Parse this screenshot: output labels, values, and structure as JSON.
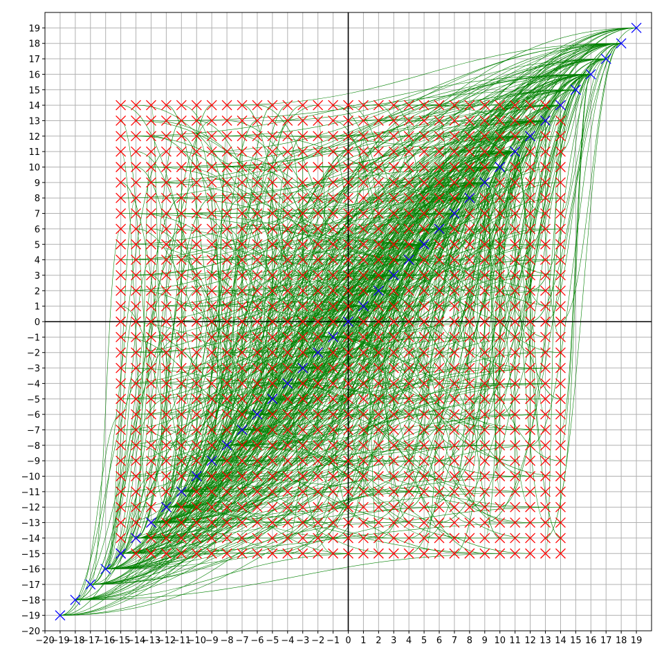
{
  "chart_data": {
    "type": "scatter",
    "title": "",
    "xlabel": "",
    "ylabel": "",
    "xlim": [
      -20,
      20
    ],
    "ylim": [
      -20,
      20
    ],
    "grid": true,
    "legend": "none",
    "x_ticks": [
      -20,
      -19,
      -18,
      -17,
      -16,
      -15,
      -14,
      -13,
      -12,
      -11,
      -10,
      -9,
      -8,
      -7,
      -6,
      -5,
      -4,
      -3,
      -2,
      -1,
      0,
      1,
      2,
      3,
      4,
      5,
      6,
      7,
      8,
      9,
      10,
      11,
      12,
      13,
      14,
      15,
      16,
      17,
      18,
      19
    ],
    "y_ticks": [
      -20,
      -19,
      -18,
      -17,
      -16,
      -15,
      -14,
      -13,
      -12,
      -11,
      -10,
      -9,
      -8,
      -7,
      -6,
      -5,
      -4,
      -3,
      -2,
      -1,
      0,
      1,
      2,
      3,
      4,
      5,
      6,
      7,
      8,
      9,
      10,
      11,
      12,
      13,
      14,
      15,
      16,
      17,
      18,
      19
    ],
    "x_tick_labels": [
      "−20",
      "−19",
      "−18",
      "−17",
      "−16",
      "−15",
      "−14",
      "−13",
      "−12",
      "−11",
      "−10",
      "−9",
      "−8",
      "−7",
      "−6",
      "−5",
      "−4",
      "−3",
      "−2",
      "−1",
      "0",
      "1",
      "2",
      "3",
      "4",
      "5",
      "6",
      "7",
      "8",
      "9",
      "10",
      "11",
      "12",
      "13",
      "14",
      "15",
      "16",
      "17",
      "18",
      "19"
    ],
    "y_tick_labels": [
      "−20",
      "−19",
      "−18",
      "−17",
      "−16",
      "−15",
      "−14",
      "−13",
      "−12",
      "−11",
      "−10",
      "−9",
      "−8",
      "−7",
      "−6",
      "−5",
      "−4",
      "−3",
      "−2",
      "−1",
      "0",
      "1",
      "2",
      "3",
      "4",
      "5",
      "6",
      "7",
      "8",
      "9",
      "10",
      "11",
      "12",
      "13",
      "14",
      "15",
      "16",
      "17",
      "18",
      "19"
    ],
    "series": [
      {
        "marker": "x",
        "color": "#ff0000",
        "grid_points": {
          "x_range": [
            -15,
            14
          ],
          "y_range": [
            -15,
            14
          ],
          "step": 1
        }
      },
      {
        "marker": "x",
        "color": "#0000ff",
        "x": [
          -19,
          -18,
          -17,
          -16,
          -15,
          -14,
          -13,
          -12,
          -11,
          -10,
          -9,
          -8,
          -7,
          -6,
          -5,
          -4,
          -3,
          -2,
          -1,
          0,
          1,
          2,
          3,
          4,
          5,
          6,
          7,
          8,
          9,
          10,
          11,
          12,
          13,
          14,
          15,
          16,
          17,
          18,
          19
        ],
        "y": [
          -19,
          -18,
          -17,
          -16,
          -15,
          -14,
          -13,
          -12,
          -11,
          -10,
          -9,
          -8,
          -7,
          -6,
          -5,
          -4,
          -3,
          -2,
          -1,
          0,
          1,
          2,
          3,
          4,
          5,
          6,
          7,
          8,
          9,
          10,
          11,
          12,
          13,
          14,
          15,
          16,
          17,
          18,
          19
        ]
      },
      {
        "type": "line",
        "color": "#008000",
        "description_free": true,
        "connects": "each red grid point to a point on the diagonal y = x, curving through the plane"
      }
    ],
    "axis_lines": {
      "x0": true,
      "y0": true,
      "color": "#000000"
    }
  }
}
